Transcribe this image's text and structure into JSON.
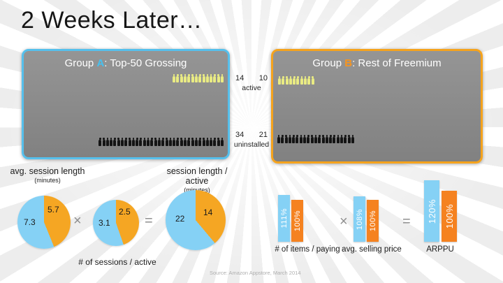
{
  "title": "2 Weeks Later…",
  "source": "Source:  Amazon Appstore, March 2014",
  "ops": {
    "times": "×",
    "eq": "="
  },
  "colors": {
    "group_a_accent": "#45C1F0",
    "group_b_accent": "#F7941E",
    "panel_border_a": "#56C0EC",
    "panel_border_b": "#F5A31D",
    "active_icon": "#E9EB83",
    "uninstalled_icon": "#141414",
    "blue_series": "#85D1F5",
    "orange_series": "#F5A623"
  },
  "panels": {
    "a": {
      "prefix": "Group ",
      "letter": "A",
      "rest": ":  Top-50 Grossing"
    },
    "b": {
      "prefix": "Group ",
      "letter": "B",
      "rest": ":  Rest of Freemium"
    }
  },
  "chart_data": [
    {
      "type": "table",
      "title": "2 Weeks Later… cohort pictogram",
      "categories": [
        "Group A: Top-50 Grossing",
        "Group B: Rest of Freemium"
      ],
      "series": [
        {
          "name": "active",
          "values": [
            14,
            10
          ]
        },
        {
          "name": "uninstalled",
          "values": [
            34,
            21
          ]
        }
      ]
    },
    {
      "type": "pie",
      "title": "avg. session length",
      "subtitle": "(minutes)",
      "labels": [
        "Group A",
        "Group B"
      ],
      "values": [
        7.3,
        5.7
      ],
      "colors": [
        "#85D1F5",
        "#F5A623"
      ]
    },
    {
      "type": "pie",
      "title": "# of sessions / active",
      "subtitle": "",
      "labels": [
        "Group A",
        "Group B"
      ],
      "values": [
        3.1,
        2.5
      ],
      "colors": [
        "#85D1F5",
        "#F5A623"
      ]
    },
    {
      "type": "pie",
      "title": "session length / active",
      "subtitle": "(minutes)",
      "labels": [
        "Group A",
        "Group B"
      ],
      "values": [
        22,
        14
      ],
      "colors": [
        "#85D1F5",
        "#F5A623"
      ]
    },
    {
      "type": "bar",
      "title": "# of items / paying",
      "labels": [
        "Group A",
        "Group B"
      ],
      "values": [
        111,
        100
      ],
      "value_labels": [
        "111%",
        "100%"
      ],
      "unit": "%",
      "colors": [
        "#85D1F5",
        "#F58220"
      ]
    },
    {
      "type": "bar",
      "title": "avg. selling price",
      "labels": [
        "Group A",
        "Group B"
      ],
      "values": [
        108,
        100
      ],
      "value_labels": [
        "108%",
        "100%"
      ],
      "unit": "%",
      "colors": [
        "#85D1F5",
        "#F58220"
      ]
    },
    {
      "type": "bar",
      "title": "ARPPU",
      "labels": [
        "Group A",
        "Group B"
      ],
      "values": [
        120,
        100
      ],
      "value_labels": [
        "120%",
        "100%"
      ],
      "unit": "%",
      "colors": [
        "#85D1F5",
        "#F58220"
      ]
    }
  ]
}
